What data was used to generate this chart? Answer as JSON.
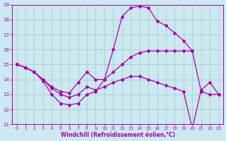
{
  "bg_color": "#cce8f0",
  "grid_color": "#aacccc",
  "line_color": "#aa00aa",
  "xlabel": "Windchill (Refroidissement éolien,°C)",
  "xlim": [
    -0.5,
    23.5
  ],
  "ylim": [
    11,
    19
  ],
  "yticks": [
    11,
    12,
    13,
    14,
    15,
    16,
    17,
    18,
    19
  ],
  "xticks": [
    0,
    1,
    2,
    3,
    4,
    5,
    6,
    7,
    8,
    9,
    10,
    11,
    12,
    13,
    14,
    15,
    16,
    17,
    18,
    19,
    20,
    21,
    22,
    23
  ],
  "lines": [
    {
      "x": [
        0,
        1,
        2,
        3,
        4,
        5,
        6,
        7,
        8,
        9,
        10,
        11,
        12,
        13,
        14,
        15,
        16,
        17,
        18,
        19,
        20
      ],
      "y": [
        15.0,
        14.8,
        14.5,
        13.9,
        13.0,
        12.4,
        12.3,
        12.4,
        13.0,
        13.2,
        14.0,
        16.0,
        18.2,
        18.8,
        18.9,
        18.8,
        17.9,
        17.6,
        17.1,
        16.6,
        15.9
      ]
    },
    {
      "x": [
        0,
        1,
        2,
        3,
        4,
        5,
        6,
        7,
        8,
        9,
        10,
        11,
        12,
        13,
        14,
        15,
        16,
        17,
        18,
        19,
        20,
        21,
        22,
        23
      ],
      "y": [
        15.0,
        14.8,
        14.5,
        14.0,
        13.5,
        13.2,
        13.1,
        13.8,
        14.5,
        14.0,
        14.0,
        14.5,
        15.0,
        15.5,
        15.8,
        15.9,
        15.9,
        15.9,
        15.9,
        15.9,
        15.9,
        13.2,
        13.0,
        13.0
      ]
    },
    {
      "x": [
        0,
        1,
        2,
        3,
        4,
        5,
        6,
        7,
        8,
        9,
        10,
        11,
        12,
        13,
        14,
        15,
        16,
        17,
        18,
        19,
        20,
        21,
        22,
        23
      ],
      "y": [
        15.0,
        14.8,
        14.5,
        14.0,
        13.4,
        13.0,
        12.8,
        13.0,
        13.5,
        13.3,
        13.5,
        13.8,
        14.0,
        14.2,
        14.2,
        14.0,
        13.8,
        13.6,
        13.4,
        13.2,
        10.7,
        13.3,
        13.8,
        13.0
      ]
    }
  ]
}
